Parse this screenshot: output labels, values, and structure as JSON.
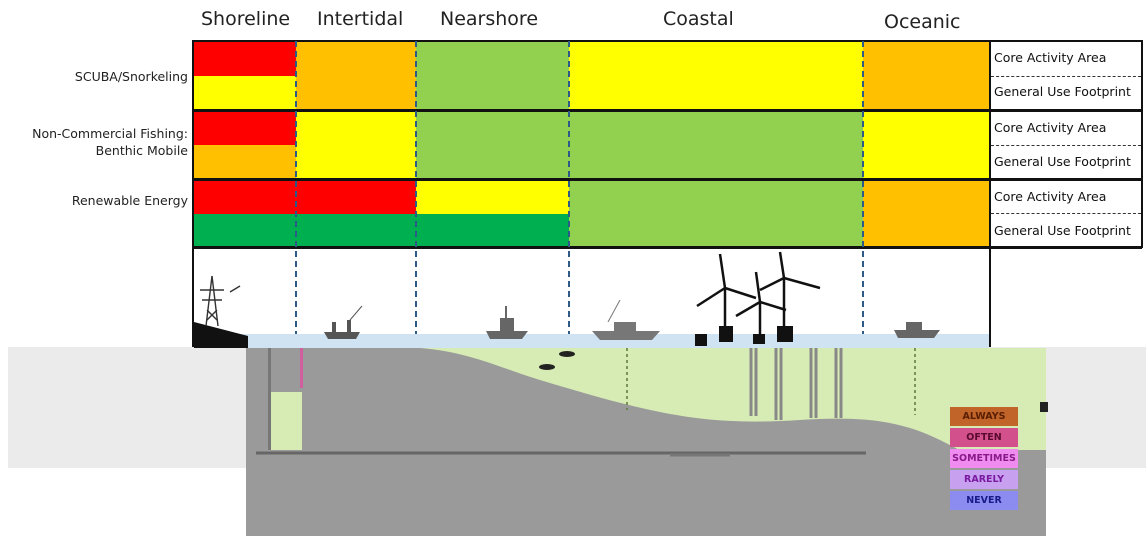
{
  "zones": [
    "Shoreline",
    "Intertidal",
    "Nearshore",
    "Coastal",
    "Oceanic"
  ],
  "activities": [
    {
      "label_line1": "SCUBA/Snorkeling",
      "label_line2": ""
    },
    {
      "label_line1": "Non-Commercial Fishing:",
      "label_line2": "Benthic Mobile"
    },
    {
      "label_line1": "Renewable Energy",
      "label_line2": ""
    }
  ],
  "row_types": [
    "Core Activity Area",
    "General Use Footprint"
  ],
  "colors": {
    "red": "#ff0000",
    "orange": "#ffc000",
    "yellow": "#ffff00",
    "light_green": "#92d050",
    "green": "#00b050"
  },
  "matrix": [
    [
      "red",
      "orange",
      "light_green",
      "yellow",
      "orange"
    ],
    [
      "yellow",
      "orange",
      "light_green",
      "yellow",
      "orange"
    ],
    [
      "red",
      "yellow",
      "light_green",
      "light_green",
      "yellow"
    ],
    [
      "orange",
      "yellow",
      "light_green",
      "light_green",
      "yellow"
    ],
    [
      "red",
      "red",
      "yellow",
      "light_green",
      "orange"
    ],
    [
      "green",
      "green",
      "green",
      "light_green",
      "orange"
    ]
  ],
  "frequency_key": [
    {
      "label": "ALWAYS",
      "color": "#c0642a",
      "text_color": "#5a1e00"
    },
    {
      "label": "OFTEN",
      "color": "#d2508c",
      "text_color": "#5a0a2e"
    },
    {
      "label": "SOMETIMES",
      "color": "#f08cf0",
      "text_color": "#8a1a8a"
    },
    {
      "label": "RARELY",
      "color": "#c8a0f0",
      "text_color": "#7a1aa0"
    },
    {
      "label": "NEVER",
      "color": "#8c8cf0",
      "text_color": "#1a1a8a"
    }
  ],
  "scene": {
    "icons": [
      "power-pylon-icon",
      "fishing-boat-icon",
      "trawler-icon",
      "sport-fishing-boat-icon",
      "wind-turbine-icon",
      "diver-icon",
      "offshore-boat-icon"
    ]
  }
}
